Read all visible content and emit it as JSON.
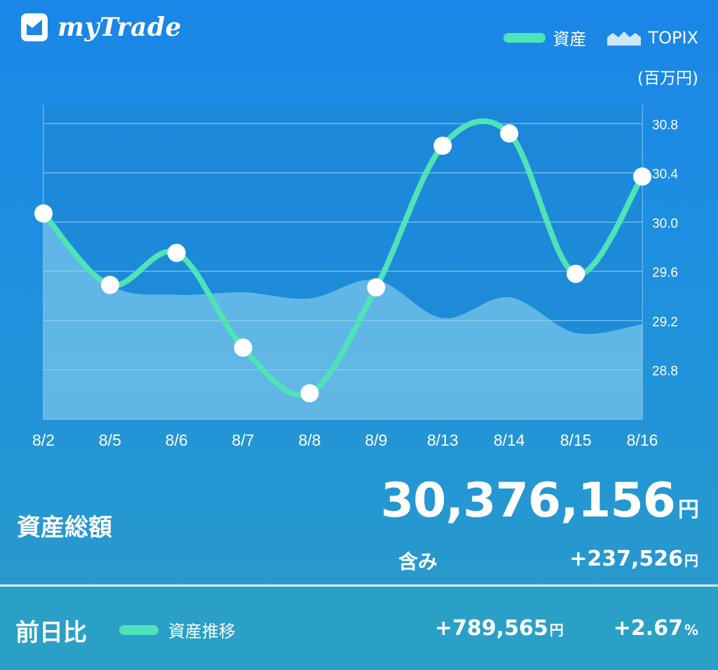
{
  "app": {
    "title": "myTrade"
  },
  "colors": {
    "asset_line": "#4fe3b8",
    "topix_fill": "#6cbde6",
    "topix_top": "#1d87d4",
    "grid": "#7fc4f0",
    "point": "#ffffff"
  },
  "legend": {
    "asset_label": "資産",
    "topix_label": "TOPIX",
    "unit_label": "(百万円)"
  },
  "chart_data": {
    "type": "line",
    "categories": [
      "8/2",
      "8/5",
      "8/6",
      "8/7",
      "8/8",
      "8/9",
      "8/13",
      "8/14",
      "8/15",
      "8/16"
    ],
    "series": [
      {
        "name": "資産",
        "kind": "line",
        "values": [
          30.07,
          29.49,
          29.75,
          28.98,
          28.61,
          29.47,
          30.62,
          30.72,
          29.58,
          30.37
        ]
      },
      {
        "name": "TOPIX",
        "kind": "area",
        "values": [
          30.07,
          29.49,
          29.41,
          29.43,
          29.38,
          29.53,
          29.22,
          29.39,
          29.1,
          29.17
        ]
      }
    ],
    "yticks": [
      28.8,
      29.2,
      29.6,
      30.0,
      30.4,
      30.8
    ],
    "ylim": [
      28.4,
      30.95
    ],
    "yaxis_position": "right",
    "ylabel": "(百万円)",
    "grid": true,
    "legend_position": "top-right"
  },
  "summary": {
    "total_label": "資産総額",
    "total_value": "30,376,156",
    "total_unit": "円",
    "sub_label": "含み",
    "sub_value": "+237,526",
    "sub_unit": "円"
  },
  "footer": {
    "label": "前日比",
    "legend_label": "資産推移",
    "diff_value": "+789,565",
    "diff_unit": "円",
    "pct_value": "+2.67",
    "pct_unit": "%"
  }
}
